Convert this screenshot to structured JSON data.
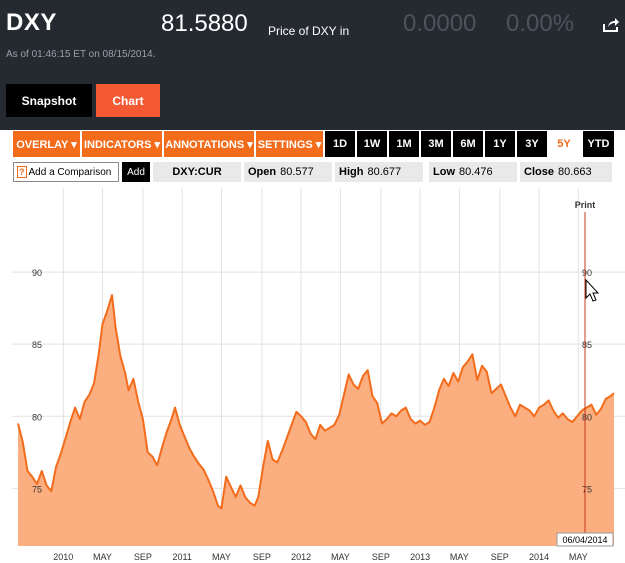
{
  "header": {
    "ticker": "DXY",
    "price": "81.5880",
    "price_desc": "Price of DXY in",
    "change": "0.0000",
    "change_pct": "0.00%",
    "asof": "As of 01:46:15 ET on 08/15/2014."
  },
  "tabs": [
    {
      "label": "Snapshot",
      "active": false
    },
    {
      "label": "Chart",
      "active": true
    }
  ],
  "toolbar": {
    "menus": [
      "OVERLAY ▾",
      "INDICATORS ▾",
      "ANNOTATIONS ▾",
      "SETTINGS ▾"
    ],
    "ranges": [
      "1D",
      "1W",
      "1M",
      "3M",
      "6M",
      "1Y",
      "3Y",
      "5Y",
      "YTD"
    ],
    "active_range": "5Y"
  },
  "info": {
    "compare_placeholder": "Add a Comparison",
    "compare_icon": "?",
    "add_label": "Add",
    "symbol": "DXY:CUR",
    "open_label": "Open",
    "open_value": "80.577",
    "high_label": "High",
    "high_value": "80.677",
    "low_label": "Low",
    "low_value": "80.476",
    "close_label": "Close",
    "close_value": "80.663"
  },
  "chart_data": {
    "type": "area",
    "print_label": "Print",
    "cursor_date": "06/04/2014",
    "y_ticks": [
      75,
      80,
      85,
      90
    ],
    "ylim": [
      71,
      95
    ],
    "x_ticks": [
      {
        "label": "2010",
        "t": 2010.0
      },
      {
        "label": "MAY",
        "t": 2010.33
      },
      {
        "label": "SEP",
        "t": 2010.67
      },
      {
        "label": "2011",
        "t": 2011.0
      },
      {
        "label": "MAY",
        "t": 2011.33
      },
      {
        "label": "SEP",
        "t": 2011.67
      },
      {
        "label": "2012",
        "t": 2012.0
      },
      {
        "label": "MAY",
        "t": 2012.33
      },
      {
        "label": "SEP",
        "t": 2012.67
      },
      {
        "label": "2013",
        "t": 2013.0
      },
      {
        "label": "MAY",
        "t": 2013.33
      },
      {
        "label": "SEP",
        "t": 2013.67
      },
      {
        "label": "2014",
        "t": 2014.0
      },
      {
        "label": "MAY",
        "t": 2014.33
      }
    ],
    "xlim": [
      2009.62,
      2014.63
    ],
    "grid": true,
    "colors": {
      "line": "#f26c1c",
      "fill": "#fbae80",
      "cursor": "#c43b20"
    },
    "points": [
      [
        2009.62,
        79.5
      ],
      [
        2009.66,
        78.2
      ],
      [
        2009.7,
        76.2
      ],
      [
        2009.74,
        75.8
      ],
      [
        2009.78,
        75.3
      ],
      [
        2009.82,
        76.2
      ],
      [
        2009.86,
        75.2
      ],
      [
        2009.9,
        74.8
      ],
      [
        2009.94,
        76.5
      ],
      [
        2009.98,
        77.4
      ],
      [
        2010.02,
        78.5
      ],
      [
        2010.06,
        79.6
      ],
      [
        2010.1,
        80.6
      ],
      [
        2010.14,
        79.8
      ],
      [
        2010.18,
        81.0
      ],
      [
        2010.22,
        81.5
      ],
      [
        2010.26,
        82.3
      ],
      [
        2010.3,
        84.4
      ],
      [
        2010.33,
        86.4
      ],
      [
        2010.37,
        87.3
      ],
      [
        2010.41,
        88.4
      ],
      [
        2010.44,
        86.2
      ],
      [
        2010.48,
        84.2
      ],
      [
        2010.52,
        83.0
      ],
      [
        2010.55,
        81.8
      ],
      [
        2010.59,
        82.6
      ],
      [
        2010.63,
        81.0
      ],
      [
        2010.67,
        79.8
      ],
      [
        2010.71,
        77.5
      ],
      [
        2010.75,
        77.2
      ],
      [
        2010.79,
        76.6
      ],
      [
        2010.83,
        77.8
      ],
      [
        2010.87,
        78.9
      ],
      [
        2010.91,
        79.8
      ],
      [
        2010.94,
        80.6
      ],
      [
        2010.98,
        79.4
      ],
      [
        2011.02,
        78.6
      ],
      [
        2011.06,
        77.8
      ],
      [
        2011.1,
        77.2
      ],
      [
        2011.14,
        76.7
      ],
      [
        2011.18,
        76.3
      ],
      [
        2011.22,
        75.6
      ],
      [
        2011.26,
        74.8
      ],
      [
        2011.3,
        73.8
      ],
      [
        2011.33,
        73.6
      ],
      [
        2011.37,
        75.8
      ],
      [
        2011.41,
        75.1
      ],
      [
        2011.45,
        74.4
      ],
      [
        2011.49,
        75.2
      ],
      [
        2011.53,
        74.4
      ],
      [
        2011.57,
        74.0
      ],
      [
        2011.61,
        73.8
      ],
      [
        2011.64,
        74.4
      ],
      [
        2011.68,
        76.5
      ],
      [
        2011.72,
        78.3
      ],
      [
        2011.76,
        77.0
      ],
      [
        2011.8,
        76.8
      ],
      [
        2011.84,
        77.6
      ],
      [
        2011.88,
        78.5
      ],
      [
        2011.92,
        79.4
      ],
      [
        2011.96,
        80.3
      ],
      [
        2012.0,
        80.0
      ],
      [
        2012.04,
        79.6
      ],
      [
        2012.08,
        78.8
      ],
      [
        2012.12,
        78.4
      ],
      [
        2012.16,
        79.4
      ],
      [
        2012.2,
        79.0
      ],
      [
        2012.24,
        79.2
      ],
      [
        2012.28,
        79.4
      ],
      [
        2012.32,
        80.1
      ],
      [
        2012.36,
        81.5
      ],
      [
        2012.4,
        82.9
      ],
      [
        2012.44,
        82.2
      ],
      [
        2012.48,
        81.9
      ],
      [
        2012.52,
        82.8
      ],
      [
        2012.56,
        83.2
      ],
      [
        2012.6,
        81.4
      ],
      [
        2012.64,
        80.9
      ],
      [
        2012.68,
        79.5
      ],
      [
        2012.72,
        79.8
      ],
      [
        2012.76,
        80.2
      ],
      [
        2012.8,
        80.0
      ],
      [
        2012.84,
        80.4
      ],
      [
        2012.88,
        80.6
      ],
      [
        2012.92,
        79.8
      ],
      [
        2012.96,
        79.5
      ],
      [
        2013.0,
        79.7
      ],
      [
        2013.04,
        79.4
      ],
      [
        2013.08,
        79.6
      ],
      [
        2013.12,
        80.6
      ],
      [
        2013.16,
        81.8
      ],
      [
        2013.2,
        82.6
      ],
      [
        2013.24,
        82.1
      ],
      [
        2013.28,
        83.0
      ],
      [
        2013.32,
        82.4
      ],
      [
        2013.36,
        83.4
      ],
      [
        2013.4,
        83.8
      ],
      [
        2013.44,
        84.3
      ],
      [
        2013.48,
        82.5
      ],
      [
        2013.52,
        83.5
      ],
      [
        2013.56,
        83.1
      ],
      [
        2013.6,
        81.6
      ],
      [
        2013.64,
        81.9
      ],
      [
        2013.68,
        82.2
      ],
      [
        2013.72,
        81.4
      ],
      [
        2013.76,
        80.6
      ],
      [
        2013.8,
        80.0
      ],
      [
        2013.84,
        80.8
      ],
      [
        2013.88,
        80.6
      ],
      [
        2013.92,
        80.4
      ],
      [
        2013.96,
        80.0
      ],
      [
        2014.0,
        80.6
      ],
      [
        2014.04,
        80.8
      ],
      [
        2014.08,
        81.1
      ],
      [
        2014.12,
        80.4
      ],
      [
        2014.16,
        79.9
      ],
      [
        2014.2,
        80.2
      ],
      [
        2014.24,
        79.8
      ],
      [
        2014.28,
        79.6
      ],
      [
        2014.32,
        80.0
      ],
      [
        2014.36,
        80.4
      ],
      [
        2014.4,
        80.6
      ],
      [
        2014.44,
        80.8
      ],
      [
        2014.48,
        80.1
      ],
      [
        2014.52,
        80.5
      ],
      [
        2014.56,
        81.2
      ],
      [
        2014.6,
        81.4
      ],
      [
        2014.63,
        81.6
      ]
    ]
  }
}
